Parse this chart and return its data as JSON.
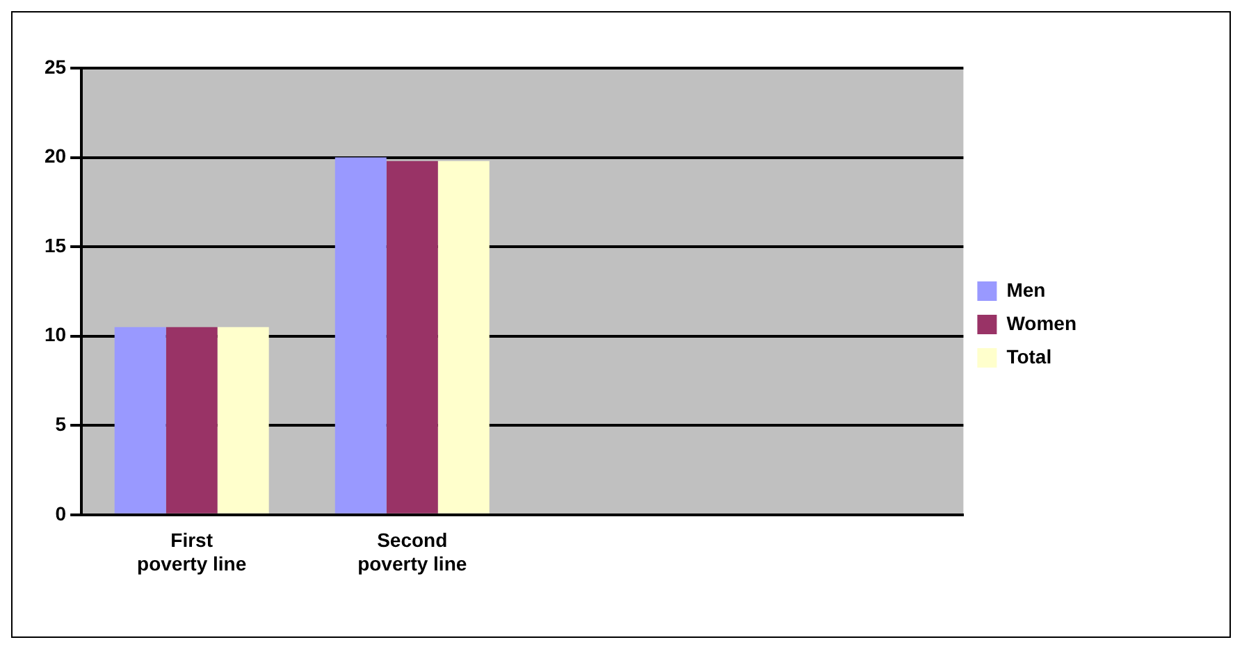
{
  "chart_data": {
    "type": "bar",
    "categories": [
      "First poverty line",
      "Second poverty line",
      null,
      null
    ],
    "series": [
      {
        "name": "Men",
        "color": "#9999ff",
        "values": [
          10.5,
          20,
          null,
          null
        ]
      },
      {
        "name": "Women",
        "color": "#993366",
        "values": [
          10.5,
          19.8,
          null,
          null
        ]
      },
      {
        "name": "Total",
        "color": "#ffffcc",
        "values": [
          10.5,
          19.8,
          null,
          null
        ]
      }
    ],
    "ylim": [
      0,
      25
    ],
    "yticks": [
      0,
      5,
      10,
      15,
      20,
      25
    ],
    "grid": "y",
    "legend": "right"
  }
}
